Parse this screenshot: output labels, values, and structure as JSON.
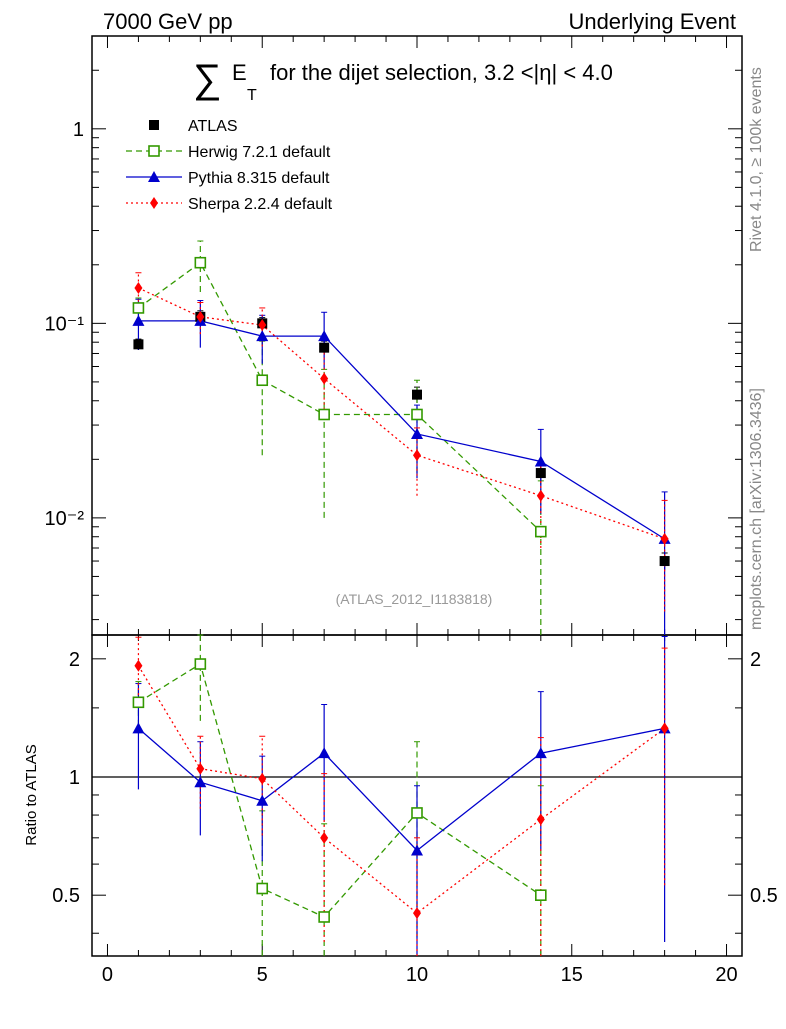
{
  "header": {
    "left": "7000 GeV pp",
    "right": "Underlying Event",
    "side_top": "Rivet 4.1.0, ≥ 100k events",
    "side_bottom": "mcplots.cern.ch [arXiv:1306.3436]"
  },
  "chart_data": {
    "type": "scatter",
    "title_symbol": "∑",
    "title_E": "E",
    "title_sub": "T",
    "title_rest": "for the dijet selection, 3.2 <|η| < 4.0",
    "analysis_id": "(ATLAS_2012_I1183818)",
    "ratio_ylabel": "Ratio to ATLAS",
    "xlim": [
      -0.5,
      20.5
    ],
    "ylim_main": [
      0.0025,
      3.0
    ],
    "ylim_ratio": [
      0.35,
      2.3
    ],
    "x_ticks": [
      0,
      5,
      10,
      15,
      20
    ],
    "main_ticks": [
      {
        "v": 1,
        "label": "1"
      },
      {
        "v": 0.1,
        "label": "10⁻¹"
      },
      {
        "v": 0.01,
        "label": "10⁻²"
      }
    ],
    "ratio_ticks": [
      {
        "v": 2,
        "label": "2"
      },
      {
        "v": 1,
        "label": "1"
      },
      {
        "v": 0.5,
        "label": "0.5"
      }
    ],
    "ratio_side_labels": [
      "2",
      "0.5"
    ],
    "series": [
      {
        "name": "ATLAS",
        "color": "#000000",
        "marker": "square-filled",
        "line": "none",
        "x": [
          1,
          3,
          5,
          7,
          10,
          14,
          18
        ],
        "y": [
          0.078,
          0.108,
          0.1,
          0.075,
          0.043,
          0.017,
          0.006
        ],
        "err": [
          0.005,
          0.008,
          0.007,
          0.006,
          0.004,
          0.002,
          0.0006
        ],
        "ratio": [
          1,
          1,
          1,
          1,
          1,
          1,
          1
        ],
        "ratio_err": [
          0,
          0,
          0,
          0,
          0,
          0,
          0
        ]
      },
      {
        "name": "Herwig 7.2.1 default",
        "color": "#339900",
        "marker": "square-open",
        "line": "dashed",
        "x": [
          1,
          3,
          5,
          7,
          10,
          14
        ],
        "y": [
          0.12,
          0.205,
          0.051,
          0.034,
          0.034,
          0.0085
        ],
        "err": [
          0.015,
          0.06,
          0.03,
          0.024,
          0.017,
          0.007
        ],
        "ratio": [
          1.55,
          1.94,
          0.52,
          0.44,
          0.81,
          0.5
        ],
        "ratio_err": [
          0.2,
          0.55,
          0.3,
          0.32,
          0.42,
          0.45
        ]
      },
      {
        "name": "Pythia 8.315 default",
        "color": "#0000cc",
        "marker": "triangle",
        "line": "solid",
        "x": [
          1,
          3,
          5,
          7,
          10,
          14,
          18
        ],
        "y": [
          0.103,
          0.103,
          0.086,
          0.086,
          0.027,
          0.0195,
          0.0078
        ],
        "err": [
          0.03,
          0.028,
          0.024,
          0.028,
          0.011,
          0.009,
          0.0058
        ],
        "ratio": [
          1.33,
          0.97,
          0.87,
          1.15,
          0.65,
          1.15,
          1.33
        ],
        "ratio_err": [
          0.4,
          0.26,
          0.26,
          0.38,
          0.3,
          0.5,
          0.95
        ]
      },
      {
        "name": "Sherpa 2.2.4 default",
        "color": "#ff0000",
        "marker": "diamond",
        "line": "dotted",
        "x": [
          1,
          3,
          5,
          7,
          10,
          14,
          18
        ],
        "y": [
          0.152,
          0.108,
          0.098,
          0.052,
          0.021,
          0.013,
          0.0078
        ],
        "err": [
          0.03,
          0.02,
          0.022,
          0.02,
          0.008,
          0.006,
          0.0045
        ],
        "ratio": [
          1.92,
          1.05,
          0.99,
          0.7,
          0.45,
          0.78,
          1.33
        ],
        "ratio_err": [
          0.35,
          0.22,
          0.28,
          0.32,
          0.25,
          0.48,
          0.8
        ]
      }
    ]
  }
}
